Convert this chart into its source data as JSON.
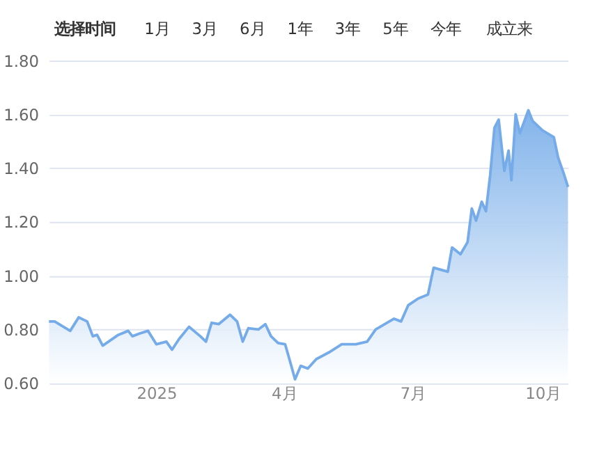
{
  "chart_data": {
    "type": "area",
    "annotations": [
      "选择时间",
      "1月",
      "3月",
      "6月",
      "1年",
      "3年",
      "5年",
      "今年",
      "成立来"
    ],
    "x": [
      "2024-10-17",
      "2024-10-21",
      "2024-11-01",
      "2024-11-07",
      "2024-11-13",
      "2024-11-17",
      "2024-11-20",
      "2024-11-24",
      "2024-12-05",
      "2024-12-12",
      "2024-12-15",
      "2024-12-20",
      "2024-12-26",
      "2025-01-01",
      "2025-01-08",
      "2025-01-12",
      "2025-01-17",
      "2025-01-24",
      "2025-02-01",
      "2025-02-05",
      "2025-02-09",
      "2025-02-14",
      "2025-02-22",
      "2025-02-27",
      "2025-03-03",
      "2025-03-07",
      "2025-03-14",
      "2025-03-19",
      "2025-03-23",
      "2025-03-28",
      "2025-04-02",
      "2025-04-05",
      "2025-04-09",
      "2025-04-13",
      "2025-04-18",
      "2025-04-24",
      "2025-05-03",
      "2025-05-12",
      "2025-05-22",
      "2025-05-30",
      "2025-06-05",
      "2025-06-18",
      "2025-06-23",
      "2025-06-28",
      "2025-07-05",
      "2025-07-12",
      "2025-07-16",
      "2025-07-26",
      "2025-07-29",
      "2025-08-04",
      "2025-08-09",
      "2025-08-12",
      "2025-08-15",
      "2025-08-19",
      "2025-08-22",
      "2025-08-25",
      "2025-08-28",
      "2025-08-31",
      "2025-09-04",
      "2025-09-07",
      "2025-09-09",
      "2025-09-12",
      "2025-09-15",
      "2025-09-21",
      "2025-09-24",
      "2025-10-01",
      "2025-10-09",
      "2025-10-12",
      "2025-10-16",
      "2025-10-19"
    ],
    "series": [
      {
        "color": "#74abe8",
        "values": [
          0.83,
          0.83,
          0.795,
          0.845,
          0.83,
          0.775,
          0.78,
          0.74,
          0.78,
          0.795,
          0.775,
          0.785,
          0.795,
          0.745,
          0.755,
          0.725,
          0.765,
          0.81,
          0.775,
          0.755,
          0.825,
          0.82,
          0.855,
          0.83,
          0.755,
          0.805,
          0.8,
          0.82,
          0.775,
          0.75,
          0.745,
          0.69,
          0.615,
          0.665,
          0.655,
          0.69,
          0.715,
          0.745,
          0.745,
          0.755,
          0.8,
          0.84,
          0.83,
          0.89,
          0.915,
          0.93,
          1.03,
          1.015,
          1.105,
          1.08,
          1.125,
          1.25,
          1.205,
          1.275,
          1.24,
          1.375,
          1.55,
          1.58,
          1.39,
          1.465,
          1.355,
          1.6,
          1.53,
          1.615,
          1.575,
          1.54,
          1.515,
          1.44,
          1.38,
          1.33
        ]
      }
    ],
    "xlim": [
      "2024-10-17",
      "2025-10-19"
    ],
    "xticks": [
      {
        "value": "2025-01-01",
        "label": "2025"
      },
      {
        "value": "2025-04-01",
        "label": "4月"
      },
      {
        "value": "2025-07-01",
        "label": "7月"
      },
      {
        "value": "2025-10-01",
        "label": "10月"
      }
    ],
    "ylim": [
      0.6,
      1.8
    ],
    "yticks": [
      {
        "value": 0.6,
        "label": "0.60"
      },
      {
        "value": 0.8,
        "label": "0.80"
      },
      {
        "value": 1.0,
        "label": "1.00"
      },
      {
        "value": 1.2,
        "label": "1.20"
      },
      {
        "value": 1.4,
        "label": "1.40"
      },
      {
        "value": 1.6,
        "label": "1.60"
      },
      {
        "value": 1.8,
        "label": "1.80"
      }
    ],
    "grid": "y",
    "marker": "none",
    "line_style": "solid"
  }
}
